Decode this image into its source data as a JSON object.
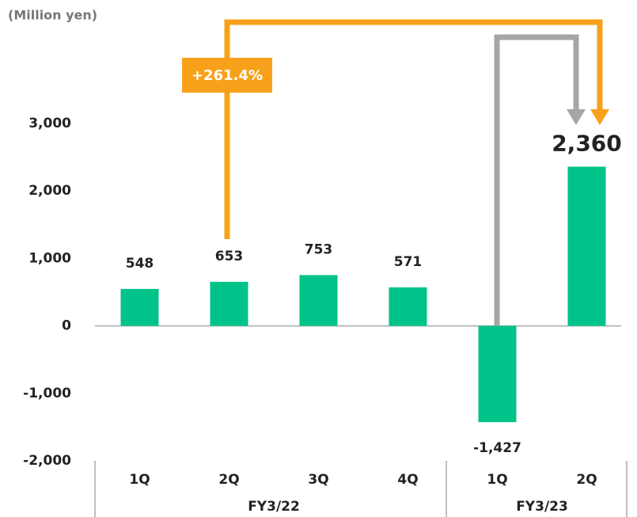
{
  "chart_data": {
    "type": "bar",
    "y_label": "(Million yen)",
    "annotation": "+261.4%",
    "categories": [
      "1Q",
      "2Q",
      "3Q",
      "4Q",
      "1Q",
      "2Q"
    ],
    "groups": [
      {
        "label": "FY3/22",
        "size": 4
      },
      {
        "label": "FY3/23",
        "size": 2
      }
    ],
    "values": [
      548,
      653,
      753,
      571,
      -1427,
      2360
    ],
    "value_labels": [
      "548",
      "653",
      "753",
      "571",
      "-1,427",
      "2,360"
    ],
    "color": "#00c389",
    "ylim": [
      -2000,
      3000
    ],
    "yticks": [
      {
        "value": -2000,
        "label": "-2,000"
      },
      {
        "value": -1000,
        "label": "-1,000"
      },
      0,
      {
        "value": 1000,
        "label": "1,000"
      },
      {
        "value": 2000,
        "label": "2,000"
      },
      {
        "value": 3000,
        "label": "3,000"
      }
    ],
    "grid": false
  }
}
